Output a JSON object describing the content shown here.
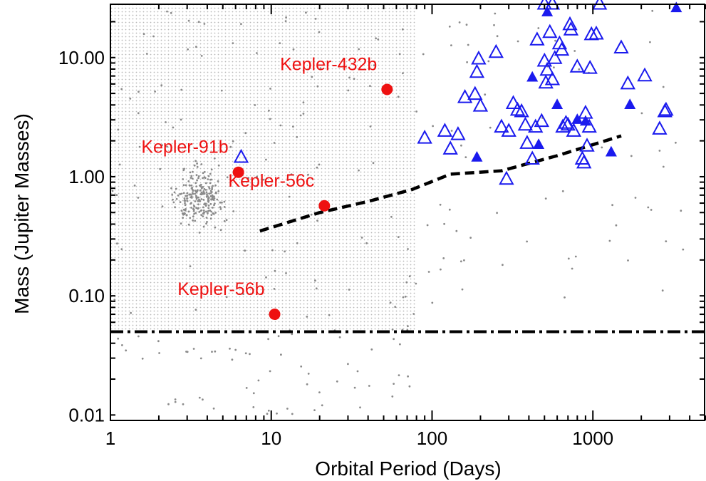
{
  "chart_data": {
    "type": "scatter",
    "title": "",
    "xlabel": "Orbital Period (Days)",
    "ylabel": "Mass (Jupiter Masses)",
    "xscale": "log",
    "yscale": "log",
    "xlim": [
      1,
      5000
    ],
    "ylim": [
      0.009,
      28
    ],
    "grid": false,
    "x_ticks": [
      {
        "value": 1,
        "label": "1"
      },
      {
        "value": 10,
        "label": "10"
      },
      {
        "value": 100,
        "label": "100"
      },
      {
        "value": 1000,
        "label": "1000"
      }
    ],
    "y_ticks": [
      {
        "value": 0.01,
        "label": "0.01"
      },
      {
        "value": 0.1,
        "label": "0.10"
      },
      {
        "value": 1,
        "label": "1.00"
      },
      {
        "value": 10,
        "label": "10.00"
      }
    ],
    "shaded_region": {
      "x": [
        1,
        80
      ],
      "y": [
        0.05,
        28
      ],
      "color": "#c9c9c9"
    },
    "threshold_line": {
      "y": 0.05,
      "style": "dash-dot",
      "color": "#000000"
    },
    "trend_line": {
      "style": "dashed",
      "color": "#000000",
      "points": [
        [
          8.5,
          0.35
        ],
        [
          20,
          0.5
        ],
        [
          40,
          0.62
        ],
        [
          75,
          0.78
        ],
        [
          130,
          1.05
        ],
        [
          270,
          1.12
        ],
        [
          600,
          1.5
        ],
        [
          1500,
          2.2
        ]
      ]
    },
    "colors": {
      "highlight": "#ee1111",
      "triangle": "#1a1aee",
      "background_points": "#8a8a8a"
    },
    "highlighted": [
      {
        "name": "Kepler-432b",
        "x": 52.5,
        "y": 5.4,
        "label_anchor": "upper-left"
      },
      {
        "name": "Kepler-91b",
        "x": 6.25,
        "y": 1.09,
        "label_anchor": "upper-left"
      },
      {
        "name": "Kepler-56c",
        "x": 21.4,
        "y": 0.57,
        "label_anchor": "upper-left"
      },
      {
        "name": "Kepler-56b",
        "x": 10.5,
        "y": 0.07,
        "label_anchor": "upper-left"
      }
    ],
    "open_triangles": [
      [
        6.5,
        1.45
      ],
      [
        90,
        2.1
      ],
      [
        120,
        2.4
      ],
      [
        130,
        1.7
      ],
      [
        145,
        2.25
      ],
      [
        160,
        4.6
      ],
      [
        185,
        4.9
      ],
      [
        200,
        3.9
      ],
      [
        190,
        7.5
      ],
      [
        195,
        9.7
      ],
      [
        250,
        11
      ],
      [
        270,
        2.6
      ],
      [
        300,
        2.4
      ],
      [
        290,
        0.95
      ],
      [
        320,
        4.1
      ],
      [
        340,
        3.6
      ],
      [
        360,
        3.5
      ],
      [
        380,
        2.7
      ],
      [
        390,
        1.9
      ],
      [
        420,
        1.4
      ],
      [
        440,
        2.6
      ],
      [
        450,
        14
      ],
      [
        480,
        2.9
      ],
      [
        500,
        9.3
      ],
      [
        520,
        7.8
      ],
      [
        560,
        6.5
      ],
      [
        510,
        6.1
      ],
      [
        540,
        16.2
      ],
      [
        580,
        9.8
      ],
      [
        620,
        13
      ],
      [
        640,
        11.5
      ],
      [
        680,
        2.8
      ],
      [
        700,
        2.7
      ],
      [
        650,
        2.6
      ],
      [
        720,
        18.8
      ],
      [
        730,
        17
      ],
      [
        760,
        2.4
      ],
      [
        800,
        8.3
      ],
      [
        860,
        1.4
      ],
      [
        880,
        1.3
      ],
      [
        900,
        3.4
      ],
      [
        920,
        1.8
      ],
      [
        950,
        2.6
      ],
      [
        960,
        8.1
      ],
      [
        980,
        15.5
      ],
      [
        1050,
        15.7
      ],
      [
        1100,
        28
      ],
      [
        1500,
        12
      ],
      [
        1650,
        6.0
      ],
      [
        2100,
        7.0
      ],
      [
        2600,
        2.5
      ],
      [
        2800,
        3.5
      ],
      [
        2850,
        3.6
      ],
      [
        500,
        28
      ],
      [
        560,
        28
      ]
    ],
    "filled_triangles": [
      [
        190,
        1.45
      ],
      [
        420,
        6.8
      ],
      [
        460,
        1.85
      ],
      [
        520,
        24
      ],
      [
        600,
        4.0
      ],
      [
        800,
        3.0
      ],
      [
        900,
        2.9
      ],
      [
        1300,
        1.6
      ],
      [
        1700,
        4.0
      ],
      [
        3300,
        26
      ]
    ]
  }
}
